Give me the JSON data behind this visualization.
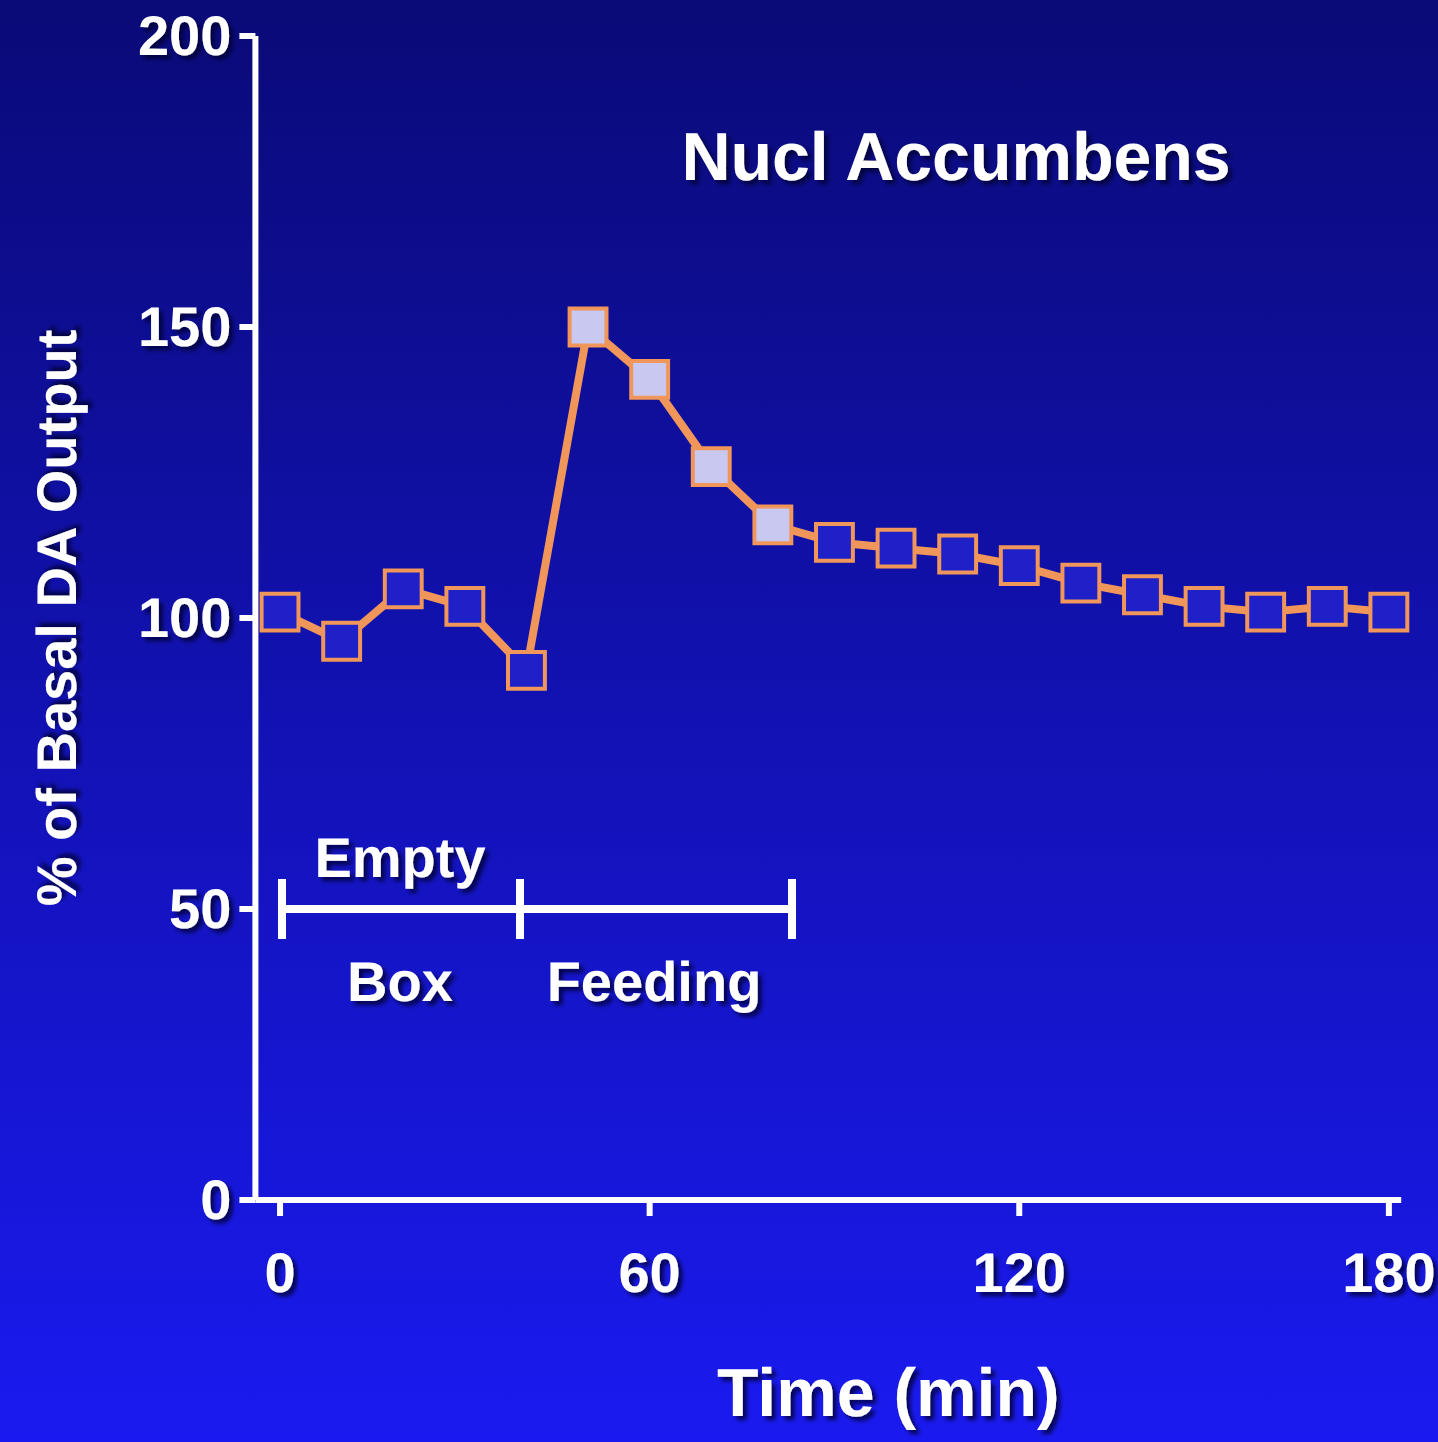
{
  "chart_data": {
    "type": "line",
    "title": "Nucl Accumbens",
    "xlabel": "Time (min)",
    "ylabel": "% of Basal DA Output",
    "x": [
      0,
      10,
      20,
      30,
      40,
      50,
      60,
      70,
      80,
      90,
      100,
      110,
      120,
      130,
      140,
      150,
      160,
      170,
      180
    ],
    "series": [
      {
        "color": "#f0965a",
        "values": [
          101,
          96,
          105,
          102,
          91,
          150,
          141,
          126,
          116,
          113,
          112,
          111,
          109,
          106,
          104,
          102,
          101,
          102,
          101
        ],
        "colors": [
          "#2020c8",
          "#2020c8",
          "#2020c8",
          "#2020c8",
          "#2020c8",
          "#c8c8f0",
          "#c8c8f0",
          "#c8c8f0",
          "#c8c8f0",
          "#2020c8",
          "#2020c8",
          "#2020c8",
          "#2020c8",
          "#2020c8",
          "#2020c8",
          "#2020c8",
          "#2020c8",
          "#2020c8",
          "#2020c8"
        ]
      }
    ],
    "xlim": [
      -4,
      182
    ],
    "xticks": [
      0,
      60,
      120,
      180
    ],
    "ylim": [
      0,
      200
    ],
    "yticks": [
      0,
      50,
      100,
      150,
      200
    ],
    "marker": "square",
    "grid": false,
    "annotations": [
      "Empty Box",
      "Feeding"
    ]
  }
}
